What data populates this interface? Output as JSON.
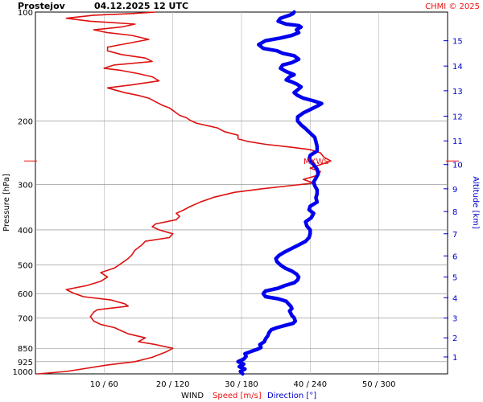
{
  "header": {
    "station": "Prostejov",
    "datetime": "04.12.2025 12 UTC",
    "credit": "CHMI © 2025"
  },
  "footer": {
    "wind_label": "WIND",
    "speed_label": "Speed [m/s]",
    "direction_label": "Direction [°]"
  },
  "colors": {
    "speed": "#dd1111",
    "direction": "#0000ee",
    "grid": "#b4b4b4",
    "text": "#000000"
  },
  "chart_data": {
    "type": "line",
    "title": "Prostejov    04.12.2025 12 UTC",
    "ylabel": "Pressure [hPa]",
    "ylabel_right": "Altitude [km]",
    "pressure_ticks": [
      100,
      200,
      300,
      400,
      500,
      600,
      700,
      850,
      925,
      1000
    ],
    "pressure_range": [
      100,
      1000
    ],
    "altitude_ticks": [
      1,
      2,
      3,
      4,
      5,
      6,
      7,
      8,
      9,
      10,
      11,
      12,
      13,
      14,
      15
    ],
    "altitude_tick_pressure": [
      898,
      795,
      701,
      616,
      540,
      472,
      410,
      356,
      308,
      264,
      227,
      194,
      165,
      141,
      120
    ],
    "x_tick_labels": [
      "10 / 60",
      "20 / 120",
      "30 / 180",
      "40 / 240",
      "50 / 300"
    ],
    "speed_range": [
      0,
      60
    ],
    "direction_range": [
      0,
      360
    ],
    "grid": true,
    "max_wind_marker": {
      "label": "MXWS",
      "pressure": 258
    },
    "series": [
      {
        "name": "Speed [m/s]",
        "units": "m/s",
        "points": [
          [
            0.4,
            1000
          ],
          [
            4.5,
            985
          ],
          [
            7.5,
            965
          ],
          [
            10.5,
            945
          ],
          [
            14.5,
            925
          ],
          [
            17.0,
            900
          ],
          [
            19.0,
            870
          ],
          [
            20.0,
            850
          ],
          [
            17.5,
            830
          ],
          [
            15.0,
            815
          ],
          [
            16.0,
            795
          ],
          [
            13.5,
            775
          ],
          [
            12.5,
            760
          ],
          [
            11.5,
            745
          ],
          [
            9.5,
            730
          ],
          [
            8.5,
            715
          ],
          [
            8.0,
            695
          ],
          [
            8.5,
            675
          ],
          [
            9.0,
            665
          ],
          [
            13.5,
            650
          ],
          [
            13.0,
            640
          ],
          [
            11.0,
            625
          ],
          [
            7.0,
            612
          ],
          [
            5.5,
            598
          ],
          [
            4.5,
            585
          ],
          [
            7.5,
            570
          ],
          [
            9.5,
            555
          ],
          [
            10.5,
            540
          ],
          [
            9.5,
            525
          ],
          [
            11.5,
            510
          ],
          [
            12.5,
            495
          ],
          [
            13.5,
            480
          ],
          [
            14.0,
            470
          ],
          [
            14.5,
            455
          ],
          [
            15.5,
            440
          ],
          [
            16.0,
            430
          ],
          [
            19.5,
            420
          ],
          [
            20.0,
            410
          ],
          [
            18.0,
            400
          ],
          [
            17.0,
            392
          ],
          [
            17.5,
            385
          ],
          [
            20.5,
            375
          ],
          [
            21.0,
            367
          ],
          [
            20.5,
            360
          ],
          [
            21.5,
            353
          ],
          [
            22.5,
            345
          ],
          [
            24.0,
            335
          ],
          [
            26.0,
            325
          ],
          [
            29.0,
            315
          ],
          [
            33.0,
            308
          ],
          [
            37.0,
            302
          ],
          [
            40.5,
            297
          ],
          [
            39.0,
            290
          ],
          [
            41.0,
            283
          ],
          [
            41.5,
            276
          ],
          [
            40.0,
            270
          ],
          [
            41.5,
            264
          ],
          [
            43.0,
            258
          ],
          [
            42.0,
            252
          ],
          [
            41.5,
            245
          ],
          [
            40.0,
            240
          ],
          [
            37.0,
            236
          ],
          [
            33.5,
            232
          ],
          [
            31.0,
            228
          ],
          [
            29.5,
            224
          ],
          [
            29.5,
            219
          ],
          [
            27.5,
            214
          ],
          [
            26.5,
            209
          ],
          [
            25.0,
            206
          ],
          [
            23.5,
            203
          ],
          [
            22.5,
            199
          ],
          [
            22.0,
            196
          ],
          [
            21.0,
            193
          ],
          [
            20.5,
            190
          ],
          [
            20.0,
            187
          ],
          [
            19.5,
            184
          ],
          [
            18.5,
            181
          ],
          [
            17.5,
            177
          ],
          [
            16.5,
            173
          ],
          [
            15.0,
            170
          ],
          [
            13.0,
            167
          ],
          [
            11.5,
            164
          ],
          [
            10.5,
            162
          ],
          [
            14.0,
            159
          ],
          [
            18.0,
            155
          ],
          [
            17.0,
            151
          ],
          [
            15.0,
            148
          ],
          [
            12.5,
            145
          ],
          [
            10.0,
            143
          ],
          [
            11.5,
            140
          ],
          [
            17.0,
            137
          ],
          [
            16.0,
            134
          ],
          [
            12.5,
            131
          ],
          [
            10.5,
            128
          ],
          [
            10.5,
            125
          ],
          [
            13.5,
            122
          ],
          [
            16.5,
            119
          ],
          [
            14.0,
            116
          ],
          [
            10.5,
            114
          ],
          [
            8.5,
            112
          ],
          [
            12.5,
            110
          ],
          [
            14.5,
            108
          ],
          [
            8.0,
            106
          ],
          [
            4.5,
            104
          ],
          [
            8.5,
            102
          ],
          [
            14.0,
            101
          ],
          [
            17.5,
            100
          ]
        ]
      },
      {
        "name": "Direction [°]",
        "units": "degrees",
        "points": [
          [
            181,
            1000
          ],
          [
            179,
            985
          ],
          [
            183,
            970
          ],
          [
            178,
            955
          ],
          [
            182,
            940
          ],
          [
            177,
            925
          ],
          [
            182,
            910
          ],
          [
            184,
            895
          ],
          [
            183,
            880
          ],
          [
            188,
            868
          ],
          [
            194,
            855
          ],
          [
            197,
            845
          ],
          [
            196,
            830
          ],
          [
            200,
            815
          ],
          [
            201,
            800
          ],
          [
            203,
            785
          ],
          [
            204,
            770
          ],
          [
            206,
            755
          ],
          [
            211,
            745
          ],
          [
            218,
            735
          ],
          [
            225,
            725
          ],
          [
            227,
            715
          ],
          [
            226,
            700
          ],
          [
            224,
            690
          ],
          [
            223,
            680
          ],
          [
            222,
            670
          ],
          [
            224,
            660
          ],
          [
            223,
            650
          ],
          [
            221,
            640
          ],
          [
            219,
            630
          ],
          [
            212,
            620
          ],
          [
            201,
            612
          ],
          [
            199,
            600
          ],
          [
            201,
            590
          ],
          [
            212,
            580
          ],
          [
            218,
            570
          ],
          [
            226,
            560
          ],
          [
            229,
            550
          ],
          [
            230,
            540
          ],
          [
            228,
            530
          ],
          [
            224,
            520
          ],
          [
            218,
            510
          ],
          [
            214,
            500
          ],
          [
            211,
            490
          ],
          [
            210,
            480
          ],
          [
            213,
            470
          ],
          [
            218,
            460
          ],
          [
            224,
            450
          ],
          [
            230,
            440
          ],
          [
            236,
            430
          ],
          [
            239,
            420
          ],
          [
            240,
            410
          ],
          [
            240,
            400
          ],
          [
            237,
            390
          ],
          [
            236,
            380
          ],
          [
            241,
            370
          ],
          [
            243,
            360
          ],
          [
            239,
            352
          ],
          [
            240,
            344
          ],
          [
            246,
            335
          ],
          [
            245,
            326
          ],
          [
            246,
            318
          ],
          [
            246,
            310
          ],
          [
            244,
            302
          ],
          [
            243,
            295
          ],
          [
            245,
            288
          ],
          [
            247,
            280
          ],
          [
            246,
            272
          ],
          [
            243,
            264
          ],
          [
            239,
            256
          ],
          [
            240,
            249
          ],
          [
            246,
            242
          ],
          [
            246,
            235
          ],
          [
            245,
            228
          ],
          [
            244,
            222
          ],
          [
            240,
            216
          ],
          [
            236,
            210
          ],
          [
            232,
            205
          ],
          [
            229,
            200
          ],
          [
            229,
            195
          ],
          [
            234,
            190
          ],
          [
            240,
            186
          ],
          [
            246,
            182
          ],
          [
            250,
            179
          ],
          [
            243,
            176
          ],
          [
            234,
            173
          ],
          [
            229,
            170
          ],
          [
            226,
            167
          ],
          [
            229,
            164
          ],
          [
            232,
            161
          ],
          [
            228,
            158
          ],
          [
            224,
            156
          ],
          [
            219,
            154
          ],
          [
            222,
            151
          ],
          [
            226,
            149
          ],
          [
            219,
            146
          ],
          [
            214,
            143
          ],
          [
            216,
            140
          ],
          [
            224,
            138
          ],
          [
            230,
            135
          ],
          [
            226,
            132
          ],
          [
            216,
            130
          ],
          [
            211,
            128
          ],
          [
            199,
            126
          ],
          [
            195,
            123
          ],
          [
            201,
            120
          ],
          [
            214,
            118
          ],
          [
            224,
            116
          ],
          [
            230,
            114
          ],
          [
            228,
            112
          ],
          [
            232,
            110
          ],
          [
            230,
            109
          ],
          [
            219,
            108
          ],
          [
            212,
            106
          ],
          [
            214,
            104
          ],
          [
            222,
            102
          ],
          [
            225,
            101
          ],
          [
            226,
            100
          ]
        ]
      }
    ]
  }
}
